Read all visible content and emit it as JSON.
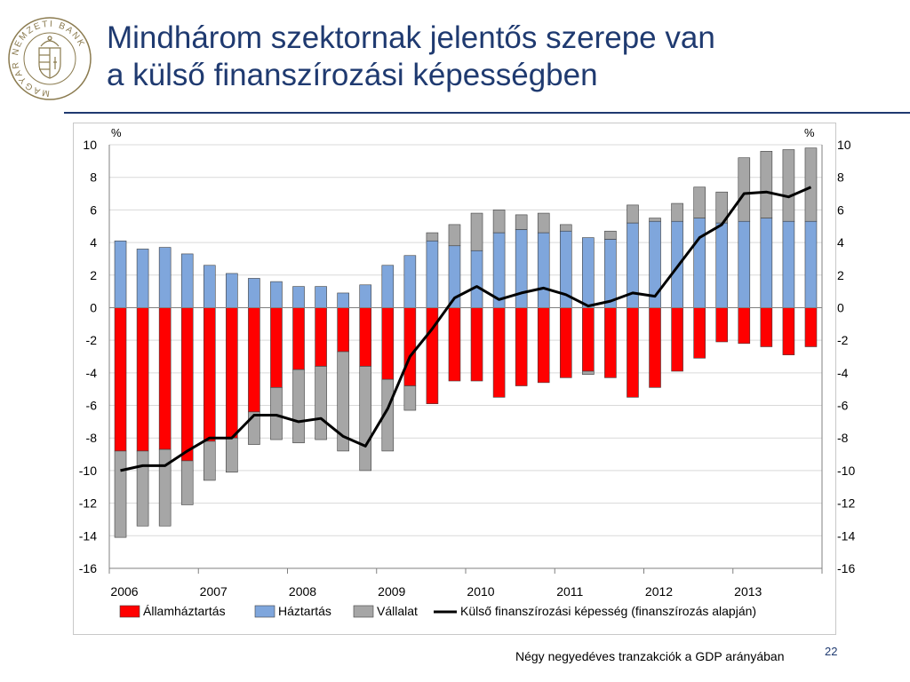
{
  "title_line1": "Mindhárom szektornak jelentős szerepe van",
  "title_line2": "a külső finanszírozási képességben",
  "footnote": "Négy negyedéves tranzakciók a GDP arányában",
  "page_number": "22",
  "logo": {
    "text": "MAGYAR NEMZETI BANK",
    "color": "#8A7A4E"
  },
  "colors": {
    "title": "#1F3A70",
    "allam": "#FF0000",
    "haztartas": "#7FA6DC",
    "vallalat": "#A6A6A6",
    "line": "#000000"
  },
  "chart_data": {
    "type": "bar",
    "stacked": true,
    "unit_left": "%",
    "unit_right": "%",
    "ylim": [
      -16,
      10
    ],
    "yticks": [
      10,
      8,
      6,
      4,
      2,
      0,
      -2,
      -4,
      -6,
      -8,
      -10,
      -12,
      -14,
      -16
    ],
    "year_labels": [
      "2006",
      "2007",
      "2008",
      "2009",
      "2010",
      "2011",
      "2012",
      "2013"
    ],
    "quarters": [
      "2006Q1",
      "2006Q2",
      "2006Q3",
      "2006Q4",
      "2007Q1",
      "2007Q2",
      "2007Q3",
      "2007Q4",
      "2008Q1",
      "2008Q2",
      "2008Q3",
      "2008Q4",
      "2009Q1",
      "2009Q2",
      "2009Q3",
      "2009Q4",
      "2010Q1",
      "2010Q2",
      "2010Q3",
      "2010Q4",
      "2011Q1",
      "2011Q2",
      "2011Q3",
      "2011Q4",
      "2012Q1",
      "2012Q2",
      "2012Q3",
      "2012Q4",
      "2013Q1",
      "2013Q2",
      "2013Q3",
      "2013Q4"
    ],
    "series": [
      {
        "name": "Államháztartás",
        "kind": "bar",
        "values": [
          -8.8,
          -8.8,
          -8.7,
          -9.4,
          -8.2,
          -8.0,
          -6.4,
          -4.9,
          -3.8,
          -3.6,
          -2.7,
          -3.6,
          -4.4,
          -4.8,
          -5.9,
          -4.5,
          -4.5,
          -5.5,
          -4.8,
          -4.6,
          -4.3,
          -3.9,
          -4.3,
          -5.5,
          -4.9,
          -3.9,
          -3.1,
          -2.1,
          -2.2,
          -2.4,
          -2.9,
          -2.4
        ]
      },
      {
        "name": "Háztartás",
        "kind": "bar",
        "values": [
          4.1,
          3.6,
          3.7,
          3.3,
          2.6,
          2.1,
          1.8,
          1.6,
          1.3,
          1.3,
          0.9,
          1.4,
          2.6,
          3.2,
          4.1,
          3.8,
          3.5,
          4.6,
          4.8,
          4.6,
          4.7,
          4.3,
          4.2,
          5.2,
          5.3,
          5.3,
          5.5,
          5.2,
          5.3,
          5.5,
          5.3,
          5.3
        ]
      },
      {
        "name": "Vállalat",
        "kind": "bar",
        "values": [
          -5.3,
          -4.6,
          -4.7,
          -2.7,
          -2.4,
          -2.1,
          -2.0,
          -3.2,
          -4.5,
          -4.5,
          -6.1,
          -6.4,
          -4.4,
          -1.5,
          0.5,
          1.3,
          2.3,
          1.4,
          0.9,
          1.2,
          0.4,
          -0.2,
          0.5,
          1.1,
          0.2,
          1.1,
          1.9,
          1.9,
          3.9,
          4.1,
          4.4,
          4.5
        ]
      },
      {
        "name": "Külső finanszírozási  képesség  (finanszírozás  alapján)",
        "kind": "line",
        "values": [
          -10.0,
          -9.7,
          -9.7,
          -8.8,
          -8.0,
          -8.0,
          -6.6,
          -6.6,
          -7.0,
          -6.8,
          -7.9,
          -8.5,
          -6.2,
          -3.0,
          -1.3,
          0.6,
          1.3,
          0.5,
          0.9,
          1.2,
          0.8,
          0.1,
          0.4,
          0.9,
          0.7,
          2.5,
          4.3,
          5.1,
          7.0,
          7.1,
          6.8,
          7.4
        ]
      }
    ]
  }
}
